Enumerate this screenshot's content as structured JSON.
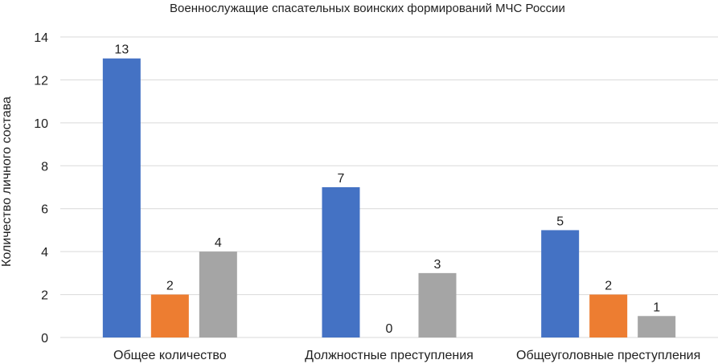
{
  "chart_data": {
    "type": "bar",
    "title": "Военнослужащие спасательных воинских формирований МЧС России",
    "xlabel": "",
    "ylabel": "Количество личного состава",
    "ylim": [
      0,
      14
    ],
    "yticks": [
      0,
      2,
      4,
      6,
      8,
      10,
      12,
      14
    ],
    "grid": true,
    "categories": [
      "Общее количество",
      "Должностные преступления",
      "Общеуголовные преступления"
    ],
    "series": [
      {
        "values": [
          13,
          7,
          5
        ],
        "color": "#4472C4"
      },
      {
        "values": [
          2,
          0,
          2
        ],
        "color": "#ED7D31"
      },
      {
        "values": [
          4,
          3,
          1
        ],
        "color": "#A5A5A5"
      }
    ],
    "data_labels": true
  }
}
